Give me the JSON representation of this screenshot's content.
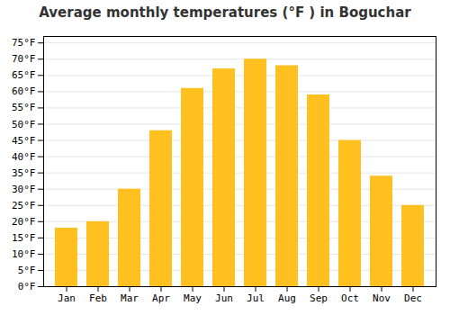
{
  "chart_data": {
    "type": "bar",
    "title": "Average monthly temperatures (°F ) in Boguchar",
    "categories": [
      "Jan",
      "Feb",
      "Mar",
      "Apr",
      "May",
      "Jun",
      "Jul",
      "Aug",
      "Sep",
      "Oct",
      "Nov",
      "Dec"
    ],
    "values": [
      18,
      20,
      30,
      48,
      61,
      67,
      70,
      68,
      59,
      45,
      34,
      25
    ],
    "color": "#FFC020",
    "ylim": [
      0,
      77
    ],
    "yticks": [
      {
        "value": 0,
        "label": "0°F"
      },
      {
        "value": 5,
        "label": "5°F"
      },
      {
        "value": 10,
        "label": "10°F"
      },
      {
        "value": 15,
        "label": "15°F"
      },
      {
        "value": 20,
        "label": "20°F"
      },
      {
        "value": 25,
        "label": "25°F"
      },
      {
        "value": 30,
        "label": "30°F"
      },
      {
        "value": 35,
        "label": "35°F"
      },
      {
        "value": 40,
        "label": "40°F"
      },
      {
        "value": 45,
        "label": "45°F"
      },
      {
        "value": 50,
        "label": "50°F"
      },
      {
        "value": 55,
        "label": "55°F"
      },
      {
        "value": 60,
        "label": "60°F"
      },
      {
        "value": 65,
        "label": "65°F"
      },
      {
        "value": 70,
        "label": "70°F"
      },
      {
        "value": 75,
        "label": "75°F"
      }
    ],
    "grid": true
  }
}
